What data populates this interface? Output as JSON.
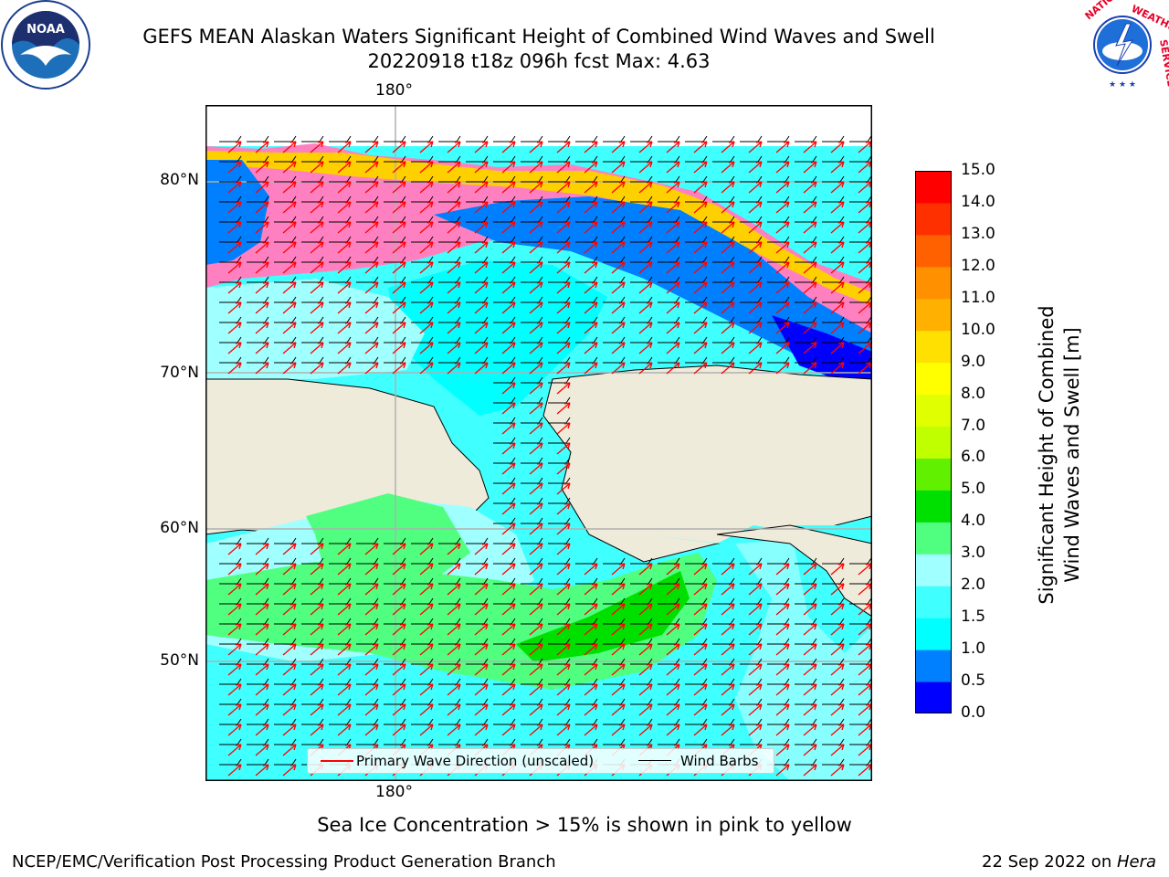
{
  "title": {
    "line1": "GEFS MEAN Alaskan Waters Significant Height of Combined Wind Waves and Swell",
    "line2": "20220918 t18z 096h fcst   Max: 4.63"
  },
  "logos": {
    "left": {
      "name": "noaa-logo",
      "text": "NOAA"
    },
    "right": {
      "name": "national-weather-service-logo",
      "text": "NATIONAL WEATHER SERVICE"
    }
  },
  "map": {
    "lon_labels": {
      "top": "180°",
      "bottom": "180°"
    },
    "lat_labels": [
      "80°N",
      "70°N",
      "60°N",
      "50°N"
    ],
    "legend": {
      "wave_direction": "Primary Wave Direction (unscaled)",
      "wind_barbs": "Wind Barbs"
    },
    "colors": {
      "land": "#efebdb",
      "wave_arrow": "#ff0000",
      "wind_barb": "#000000",
      "grid": "#b0b0b0"
    }
  },
  "colorbar": {
    "title_line1": "Significant Height of Combined",
    "title_line2": "Wind Waves and Swell [m]",
    "ticks": [
      "15.0",
      "14.0",
      "13.0",
      "12.0",
      "11.0",
      "10.0",
      "9.0",
      "8.0",
      "7.0",
      "6.0",
      "5.0",
      "4.0",
      "3.0",
      "2.0",
      "1.5",
      "1.0",
      "0.5",
      "0.0"
    ],
    "colors_bottom_to_top": [
      "#0000ff",
      "#0080ff",
      "#00ffff",
      "#40ffff",
      "#a0ffff",
      "#50ff80",
      "#00e000",
      "#60f000",
      "#c0ff00",
      "#e0ff00",
      "#ffff00",
      "#ffe000",
      "#ffb000",
      "#ff9000",
      "#ff6000",
      "#ff3000",
      "#ff0000"
    ]
  },
  "footer": {
    "note": "Sea Ice Concentration > 15% is shown in pink to yellow",
    "credit_left": "NCEP/EMC/Verification Post Processing Product Generation Branch",
    "credit_right_date": "22 Sep 2022 on ",
    "credit_right_host": "Hera"
  }
}
